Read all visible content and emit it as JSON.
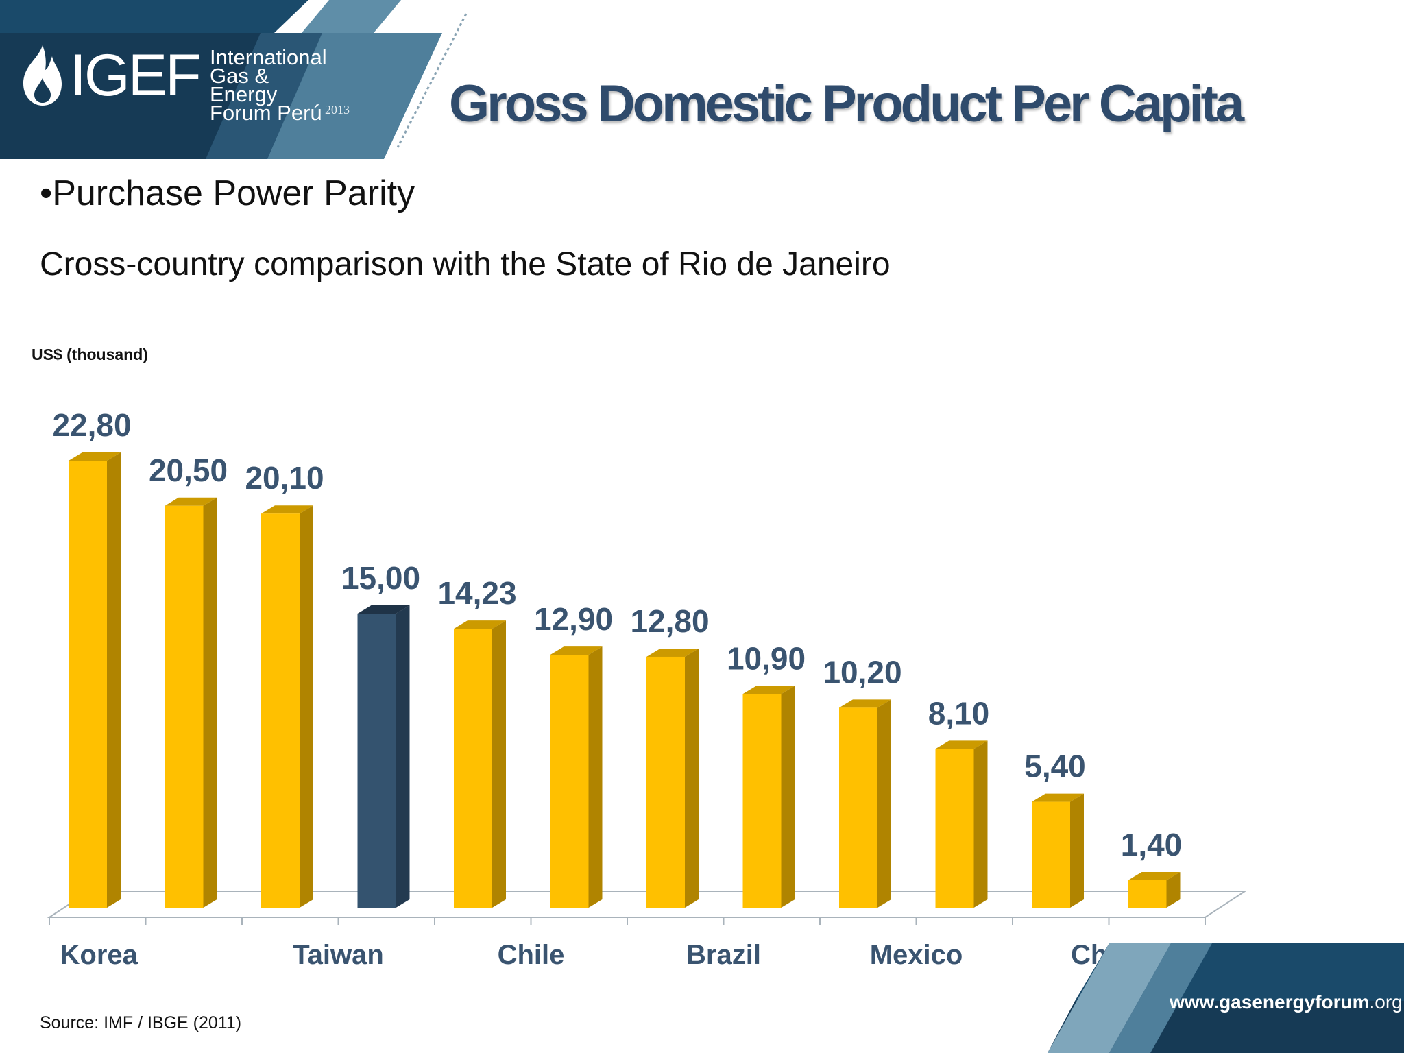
{
  "header": {
    "logo_text": "IGEF",
    "logo_line1": "International",
    "logo_line2": "Gas & Energy",
    "logo_line3": "Forum Perú",
    "logo_year": "2013",
    "title": "Gross Domestic Product  Per Capita"
  },
  "body": {
    "bullet": "•Purchase Power Parity",
    "subtitle": "Cross-country comparison with the State of Rio de Janeiro"
  },
  "footer": {
    "source": "Source:  IMF / IBGE (2011)",
    "website_main": "www.gasenergyforum",
    "website_tld": ".org"
  },
  "colors": {
    "bar": "#ffc000",
    "bar_side": "#b08400",
    "bar_top": "#cc9a00",
    "highlight": "#34536f",
    "highlight_side": "#233a50",
    "highlight_top": "#1f3347",
    "label": "#3a5470",
    "header_navy": "#173a55"
  },
  "chart_data": {
    "type": "bar",
    "ylabel": "US$ (thousand)",
    "categories": [
      "Korea",
      "",
      "Taiwan",
      "",
      "Chile",
      "",
      "Brazil",
      "",
      "Mexico",
      "",
      "China",
      ""
    ],
    "values": [
      22.8,
      20.5,
      20.1,
      15.0,
      14.23,
      12.9,
      12.8,
      10.9,
      10.2,
      8.1,
      5.4,
      1.4
    ],
    "value_labels": [
      "22,80",
      "20,50",
      "20,10",
      "15,00",
      "14,23",
      "12,90",
      "12,80",
      "10,90",
      "10,20",
      "8,10",
      "5,40",
      "1,40"
    ],
    "highlight_index": 3,
    "ylim": [
      0,
      22.8
    ],
    "grid": false,
    "style": "3d-columns"
  }
}
